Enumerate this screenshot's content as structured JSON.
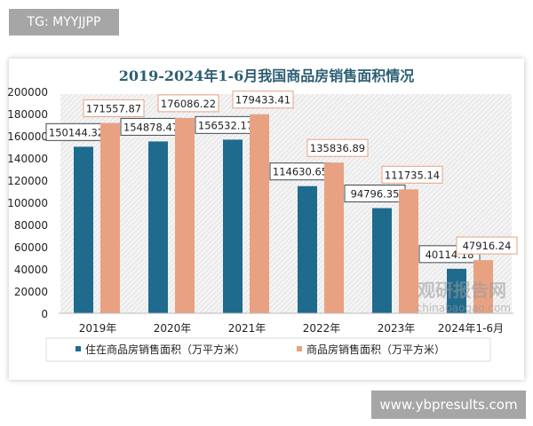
{
  "tag_label": "TG: MYYJJPP",
  "site_label": "www.ybpresults.com",
  "watermark": {
    "cn": "观研报告网",
    "en": "chinabaogao.com"
  },
  "colors": {
    "residential": "#1f6b8e",
    "total": "#e8a282",
    "title": "#2c5f73"
  },
  "chart_data": {
    "type": "bar",
    "title": "2019-2024年1-6月我国商品房销售面积情况",
    "categories": [
      "2019年",
      "2020年",
      "2021年",
      "2022年",
      "2023年",
      "2024年1-6月"
    ],
    "series": [
      {
        "name": "住在商品房销售面积（万平方米）",
        "values": [
          150144.32,
          154878.47,
          156532.17,
          114630.65,
          94796.35,
          40114.18
        ],
        "labels": [
          "150144.32",
          "154878.47",
          "156532.17",
          "114630.65",
          "94796.35",
          "40114.18"
        ]
      },
      {
        "name": "商品房销售面积（万平方米）",
        "values": [
          171557.87,
          176086.22,
          179433.41,
          135836.89,
          111735.14,
          47916.24
        ],
        "labels": [
          "171557.87",
          "176086.22",
          "179433.41",
          "135836.89",
          "111735.14",
          "47916.24"
        ]
      }
    ],
    "ylim": [
      0,
      200000
    ],
    "yticks": [
      "0",
      "20000",
      "40000",
      "60000",
      "80000",
      "100000",
      "120000",
      "140000",
      "160000",
      "180000",
      "200000"
    ],
    "grid": false,
    "legend": "bottom"
  }
}
